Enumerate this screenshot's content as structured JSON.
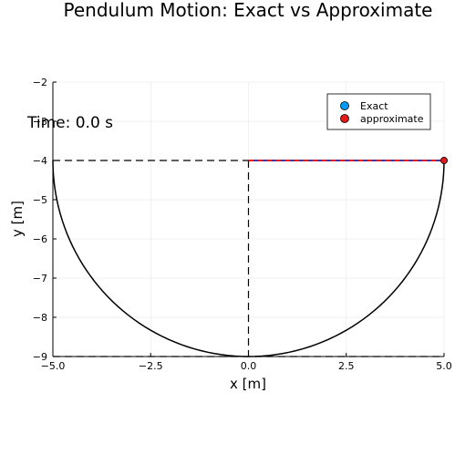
{
  "chart_data": {
    "type": "line",
    "title": "Pendulum Motion: Exact vs Approximate",
    "xlabel": "x [m]",
    "ylabel": "y [m]",
    "xlim": [
      -5,
      5
    ],
    "ylim": [
      -9,
      -2
    ],
    "xticks": [
      -5,
      -2.5,
      0,
      2.5,
      5
    ],
    "xtick_labels": [
      "−5.0",
      "−2.5",
      "0.0",
      "2.5",
      "5.0"
    ],
    "yticks": [
      -9,
      -8,
      -7,
      -6,
      -5,
      -4,
      -3,
      -2
    ],
    "ytick_labels": [
      "−9",
      "−8",
      "−7",
      "−6",
      "−5",
      "−4",
      "−3",
      "−2"
    ],
    "grid": true,
    "legend_position": "top-right",
    "annotation": "Time: 0.0 s",
    "pivot": [
      0,
      -4
    ],
    "arc": {
      "center": [
        0,
        -4
      ],
      "radius": 5,
      "from_deg": 180,
      "to_deg": 360,
      "color": "#000000"
    },
    "reference_lines": {
      "horizontal_y": [
        -4,
        -9
      ],
      "vertical_x": [
        0
      ],
      "style": "dashed",
      "color": "#000000"
    },
    "series": [
      {
        "name": "Exact",
        "color": "#009AF9",
        "rod_color": "#1f3fbf",
        "position": [
          5,
          -4
        ]
      },
      {
        "name": "approximate",
        "color": "#E41A1C",
        "rod_color": "#E41A1C",
        "position": [
          5,
          -4
        ]
      }
    ]
  }
}
